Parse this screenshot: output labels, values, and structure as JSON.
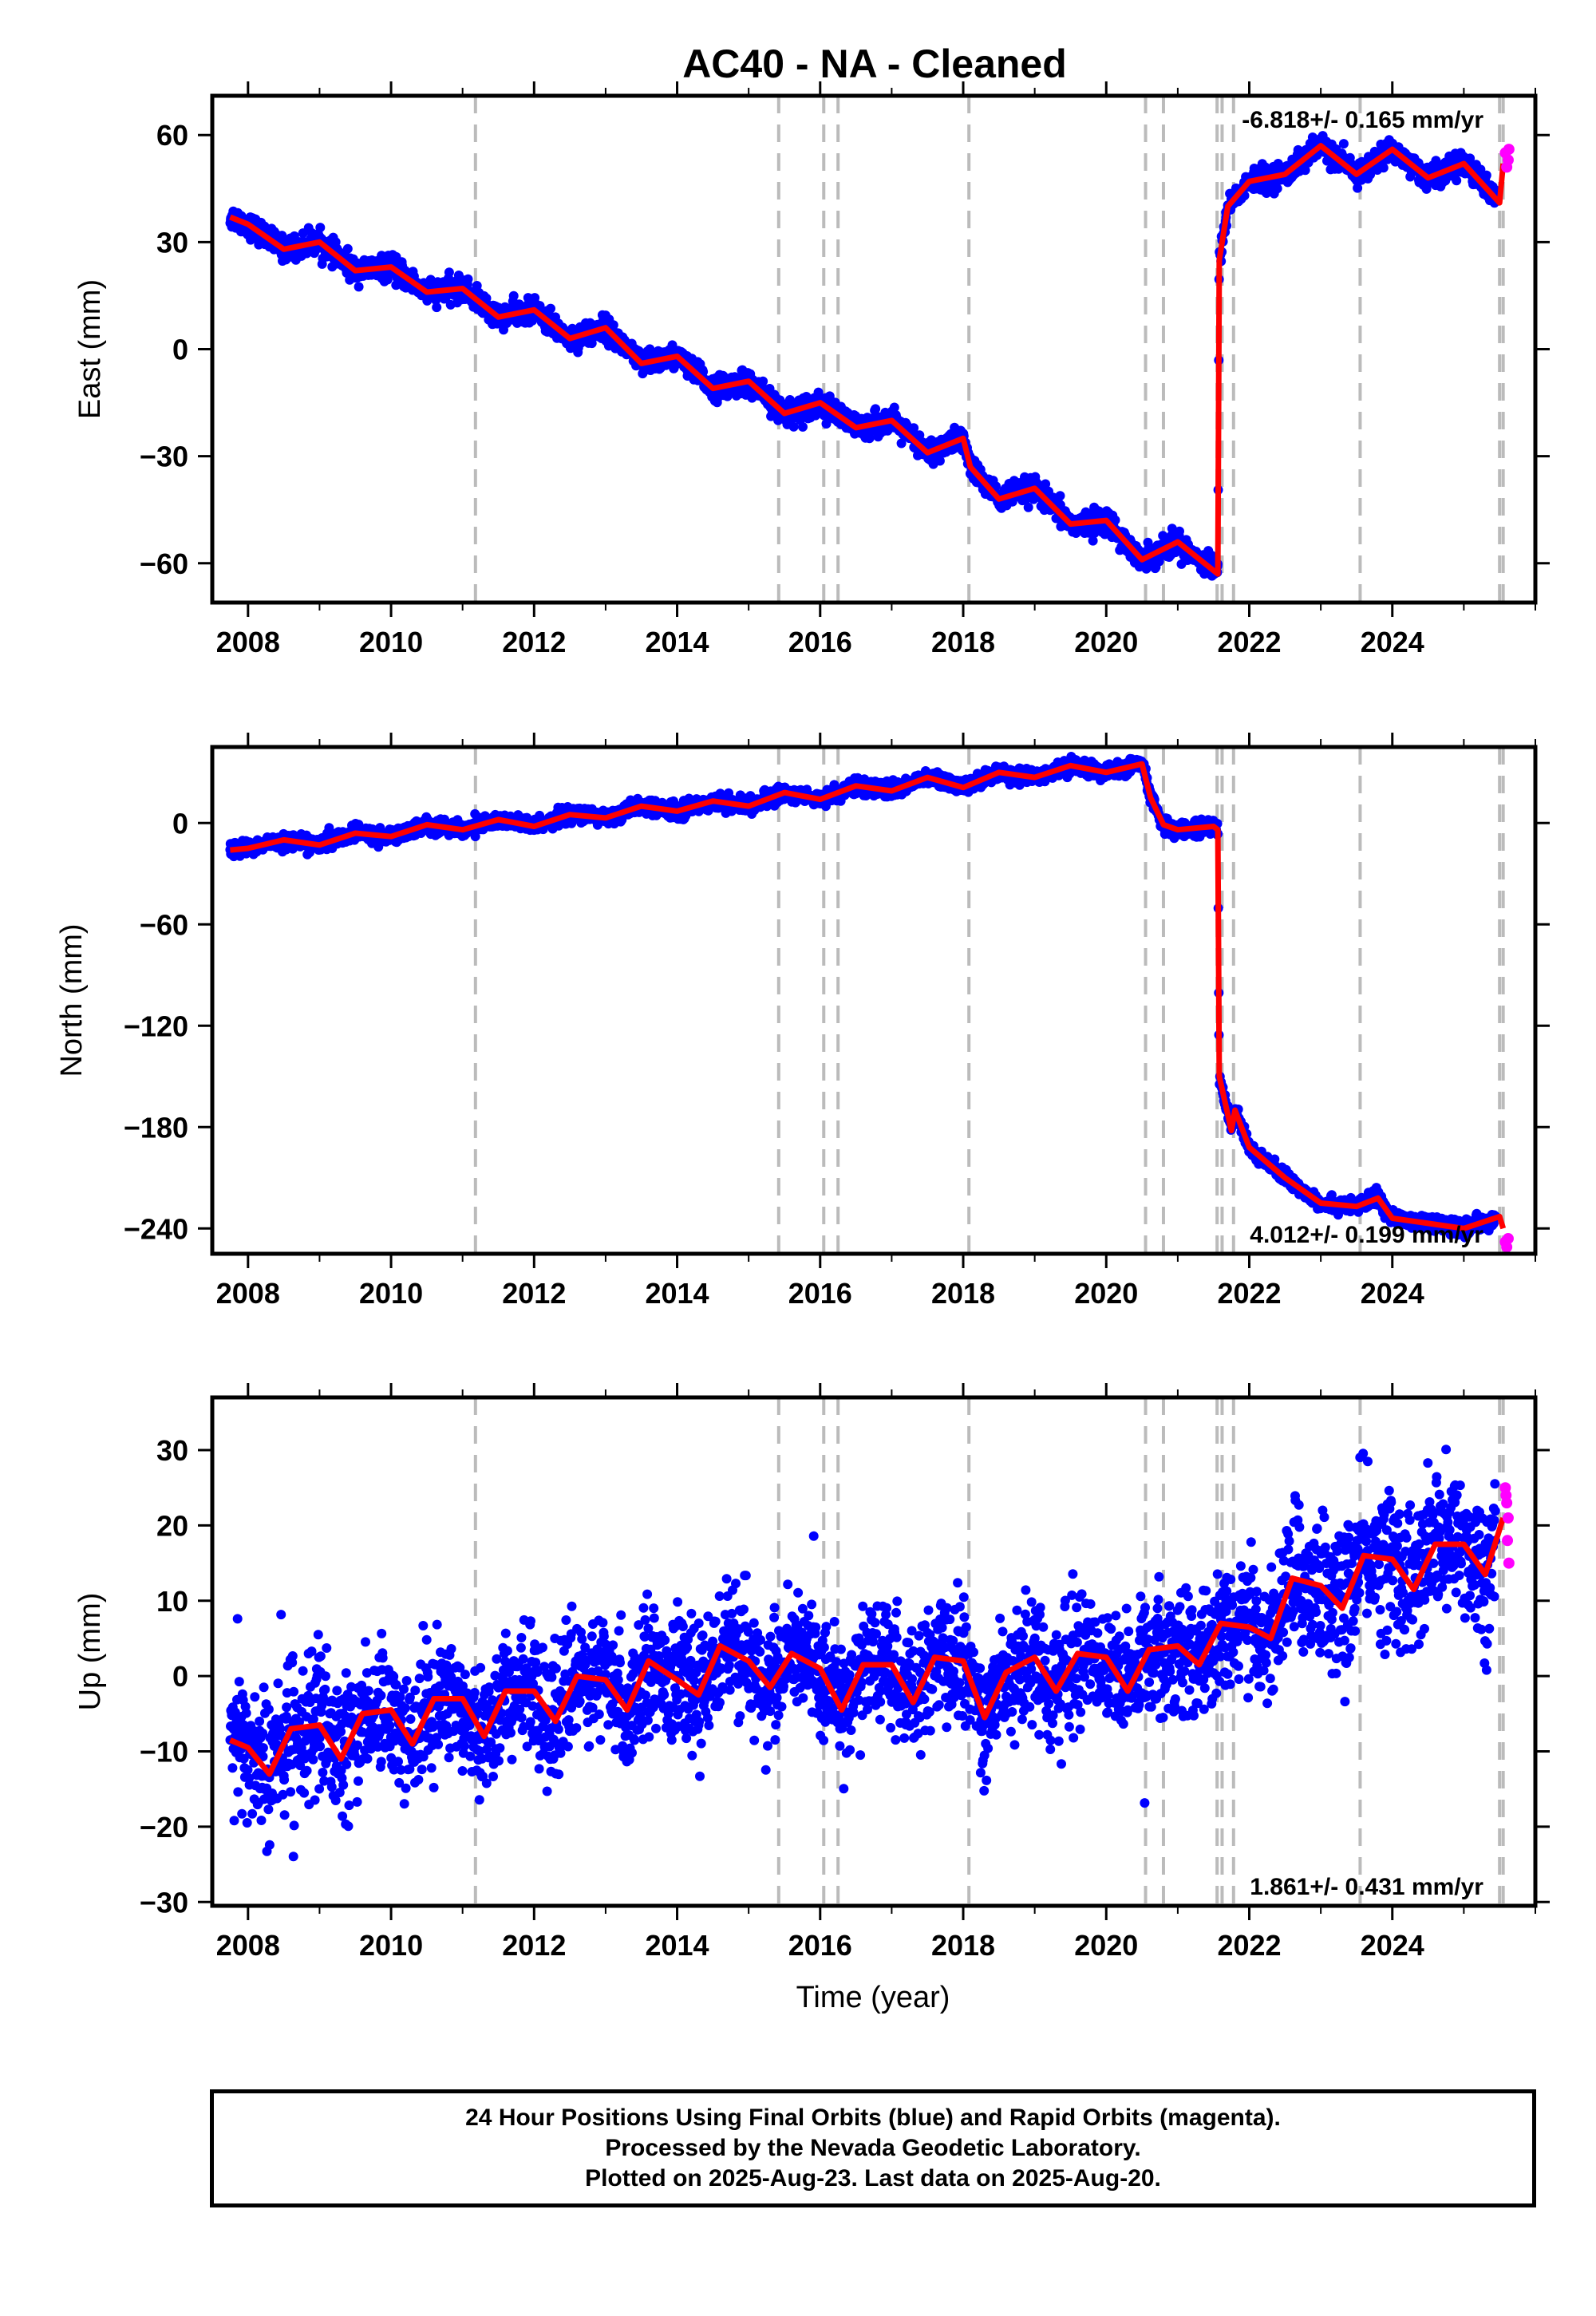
{
  "figure": {
    "title": "AC40  - NA - Cleaned",
    "xlabel": "Time (year)",
    "caption": [
      "24 Hour Positions Using Final Orbits (blue) and Rapid Orbits (magenta).",
      "Processed by the Nevada Geodetic Laboratory.",
      "Plotted on 2025-Aug-23. Last data on 2025-Aug-20."
    ],
    "colors": {
      "final": "#0000ff",
      "rapid": "#ff00ff",
      "model": "#ff0000",
      "events": "#bbbbbb"
    }
  },
  "chart_data": [
    {
      "type": "scatter",
      "panel": "east",
      "ylabel": "East (mm)",
      "xlim": [
        2007.5,
        2026.0
      ],
      "ylim": [
        -71,
        71
      ],
      "xticks": [
        2008,
        2010,
        2012,
        2014,
        2016,
        2018,
        2020,
        2022,
        2024
      ],
      "yticks": [
        -60,
        -30,
        0,
        30,
        60
      ],
      "rate_label": "-6.818+/- 0.165 mm/yr",
      "rate_position": "top-right",
      "event_lines": [
        2011.18,
        2015.42,
        2016.05,
        2016.25,
        2018.08,
        2020.55,
        2020.8,
        2021.55,
        2021.62,
        2021.78,
        2023.55,
        2025.5,
        2025.55
      ],
      "model_series": {
        "x": [
          2007.75,
          2008.0,
          2008.5,
          2009.0,
          2009.5,
          2010.0,
          2010.5,
          2011.0,
          2011.5,
          2012.0,
          2012.5,
          2013.0,
          2013.5,
          2014.0,
          2014.5,
          2015.0,
          2015.5,
          2016.0,
          2016.5,
          2017.0,
          2017.5,
          2018.0,
          2018.1,
          2018.5,
          2019.0,
          2019.5,
          2020.0,
          2020.5,
          2021.0,
          2021.56,
          2021.58,
          2021.7,
          2022.0,
          2022.5,
          2023.0,
          2023.5,
          2024.0,
          2024.5,
          2025.0,
          2025.5,
          2025.55
        ],
        "y": [
          37,
          35,
          28,
          30,
          22,
          23,
          16,
          17,
          9,
          11,
          3,
          6,
          -4,
          -2,
          -11,
          -9,
          -18,
          -15,
          -22,
          -20,
          -29,
          -25,
          -33,
          -42,
          -39,
          -49,
          -48,
          -59,
          -54,
          -63,
          25,
          40,
          47,
          49,
          57,
          49,
          56,
          48,
          52,
          41,
          52
        ]
      },
      "final_orbit_range": [
        2007.75,
        2025.45
      ],
      "rapid_orbit_points": {
        "x": [
          2025.58,
          2025.6,
          2025.62,
          2025.63
        ],
        "y": [
          55,
          51,
          53,
          56
        ]
      }
    },
    {
      "type": "scatter",
      "panel": "north",
      "ylabel": "North (mm)",
      "xlim": [
        2007.5,
        2026.0
      ],
      "ylim": [
        -255,
        45
      ],
      "xticks": [
        2008,
        2010,
        2012,
        2014,
        2016,
        2018,
        2020,
        2022,
        2024
      ],
      "yticks": [
        -240,
        -180,
        -120,
        -60,
        0
      ],
      "rate_label": "4.012+/- 0.199 mm/yr",
      "rate_position": "bottom-right",
      "event_lines": [
        2011.18,
        2015.42,
        2016.05,
        2016.25,
        2018.08,
        2020.55,
        2020.8,
        2021.55,
        2021.62,
        2021.78,
        2023.55,
        2025.5,
        2025.55
      ],
      "model_series": {
        "x": [
          2007.75,
          2008.0,
          2008.5,
          2009.0,
          2009.5,
          2010.0,
          2010.5,
          2011.0,
          2011.5,
          2012.0,
          2012.5,
          2013.0,
          2013.5,
          2014.0,
          2014.5,
          2015.0,
          2015.5,
          2016.0,
          2016.5,
          2017.0,
          2017.5,
          2018.0,
          2018.5,
          2019.0,
          2019.5,
          2020.0,
          2020.5,
          2020.62,
          2020.8,
          2021.0,
          2021.5,
          2021.56,
          2021.58,
          2021.75,
          2021.8,
          2022.0,
          2022.5,
          2023.0,
          2023.5,
          2023.8,
          2024.0,
          2024.5,
          2025.0,
          2025.5,
          2025.55
        ],
        "y": [
          -16,
          -15,
          -10,
          -13,
          -6,
          -8,
          -1,
          -4,
          2,
          -2,
          5,
          3,
          10,
          7,
          13,
          10,
          18,
          14,
          22,
          19,
          27,
          21,
          30,
          27,
          34,
          30,
          35,
          15,
          -1,
          -4,
          -2,
          -4,
          -150,
          -182,
          -170,
          -192,
          -210,
          -225,
          -227,
          -222,
          -234,
          -237,
          -240,
          -233,
          -240
        ]
      },
      "final_orbit_range": [
        2007.75,
        2025.45
      ],
      "rapid_orbit_points": {
        "x": [
          2025.58,
          2025.6,
          2025.62
        ],
        "y": [
          -248,
          -251,
          -246
        ]
      }
    },
    {
      "type": "scatter",
      "panel": "up",
      "ylabel": "Up (mm)",
      "xlim": [
        2007.5,
        2026.0
      ],
      "ylim": [
        -30.5,
        37
      ],
      "xticks": [
        2008,
        2010,
        2012,
        2014,
        2016,
        2018,
        2020,
        2022,
        2024
      ],
      "yticks": [
        -30,
        -20,
        -10,
        0,
        10,
        20,
        30
      ],
      "rate_label": "1.861+/- 0.431 mm/yr",
      "rate_position": "bottom-right",
      "event_lines": [
        2011.18,
        2015.42,
        2016.05,
        2016.25,
        2018.08,
        2020.55,
        2020.8,
        2021.55,
        2021.62,
        2021.78,
        2023.55,
        2025.5,
        2025.55
      ],
      "model_series": {
        "x": [
          2007.75,
          2008.0,
          2008.3,
          2008.6,
          2009.0,
          2009.3,
          2009.6,
          2010.0,
          2010.3,
          2010.6,
          2011.0,
          2011.3,
          2011.6,
          2012.0,
          2012.3,
          2012.6,
          2013.0,
          2013.3,
          2013.6,
          2014.0,
          2014.3,
          2014.6,
          2015.0,
          2015.3,
          2015.6,
          2016.0,
          2016.3,
          2016.6,
          2017.0,
          2017.3,
          2017.6,
          2018.0,
          2018.3,
          2018.6,
          2019.0,
          2019.3,
          2019.6,
          2020.0,
          2020.3,
          2020.6,
          2021.0,
          2021.3,
          2021.6,
          2022.0,
          2022.3,
          2022.6,
          2023.0,
          2023.3,
          2023.6,
          2024.0,
          2024.3,
          2024.6,
          2025.0,
          2025.3,
          2025.55
        ],
        "y": [
          -8.5,
          -9.5,
          -13,
          -7,
          -6.5,
          -11,
          -5,
          -4.5,
          -9,
          -3,
          -3,
          -8,
          -2,
          -2,
          -6,
          0,
          -0.5,
          -4.5,
          2,
          -0.5,
          -2.5,
          4,
          2,
          -1.5,
          3,
          1,
          -4.5,
          1.5,
          1.5,
          -3.5,
          2.5,
          2,
          -5.5,
          0.5,
          2.5,
          -2,
          3,
          2.5,
          -2,
          3.5,
          4,
          1.5,
          7,
          6.5,
          5,
          13,
          12,
          9,
          16,
          15.5,
          11.5,
          17.5,
          17.5,
          13.5,
          21
        ]
      },
      "final_orbit_range": [
        2007.75,
        2025.45
      ],
      "rapid_orbit_points": {
        "x": [
          2025.58,
          2025.6,
          2025.62,
          2025.61,
          2025.63,
          2025.59
        ],
        "y": [
          25,
          23,
          21,
          18,
          15,
          24
        ]
      }
    }
  ]
}
